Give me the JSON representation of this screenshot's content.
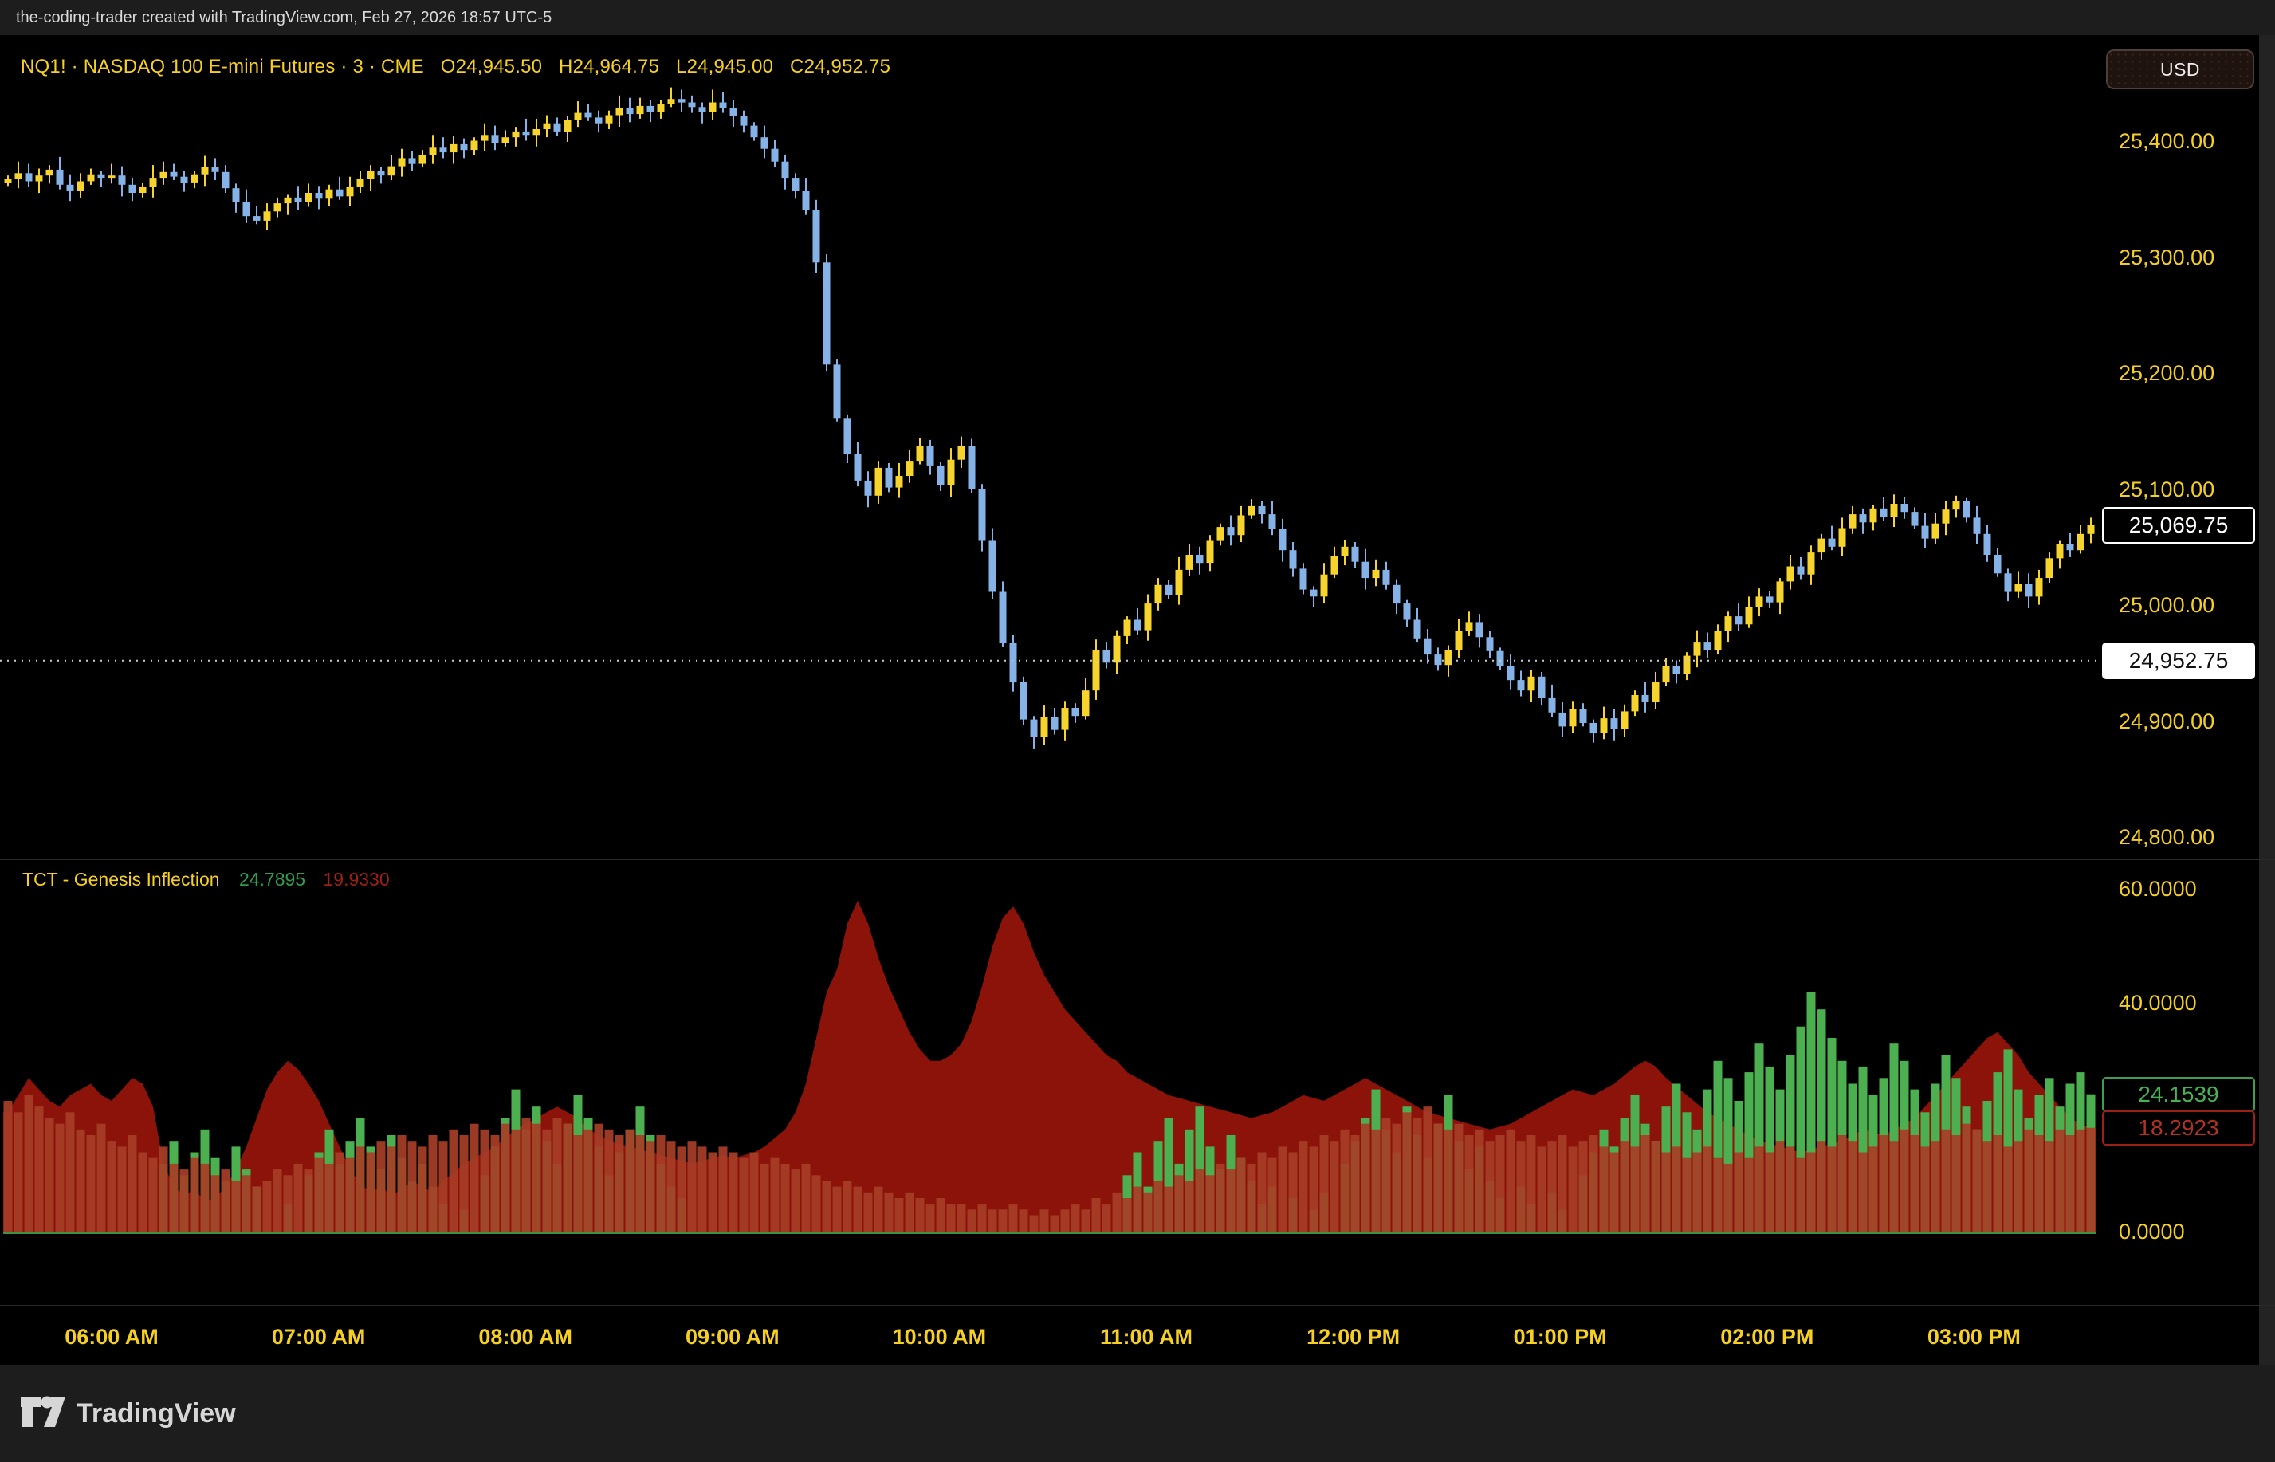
{
  "top_bar": {
    "attribution": "the-coding-trader created with TradingView.com, Feb 27, 2026 18:57 UTC-5"
  },
  "symbol_header": {
    "title": "NQ1! · NASDAQ 100 E-mini Futures · 3 · CME",
    "open": "O24,945.50",
    "high": "H24,964.75",
    "low": "L24,945.00",
    "close": "C24,952.75"
  },
  "currency_button": {
    "label": "USD"
  },
  "price_axis": {
    "ticks": [
      "25,400.00",
      "25,300.00",
      "25,200.00",
      "25,100.00",
      "25,000.00",
      "24,900.00",
      "24,800.00"
    ],
    "tick_values": [
      25400,
      25300,
      25200,
      25100,
      25000,
      24900,
      24800
    ],
    "last_price_label": "25,069.75",
    "last_price_value": 25069.75,
    "price_line_label": "24,952.75",
    "price_line_value": 24952.75
  },
  "indicator_header": {
    "title": "TCT - Genesis Inflection",
    "green_value": "24.7895",
    "red_value": "19.9330"
  },
  "indicator_axis": {
    "ticks": [
      "60.0000",
      "40.0000",
      "0.0000"
    ],
    "tick_values": [
      60,
      40,
      0
    ],
    "green_label": "24.1539",
    "green_value": 24.1539,
    "red_label": "18.2923",
    "red_value": 18.2923
  },
  "time_axis": {
    "labels": [
      "06:00 AM",
      "07:00 AM",
      "08:00 AM",
      "09:00 AM",
      "10:00 AM",
      "11:00 AM",
      "12:00 PM",
      "01:00 PM",
      "02:00 PM",
      "03:00 PM"
    ]
  },
  "footer": {
    "brand": "TradingView"
  },
  "colors": {
    "background": "#000000",
    "chrome": "#1d1d1d",
    "axis_text": "#f5cf22",
    "up_candle": "#f6d32d",
    "down_candle": "#85b3e8",
    "indicator_area": "#8c1309",
    "indicator_red_bars": "#a73e27",
    "indicator_green_bars": "#4caf50",
    "zero_line": "#3f9142",
    "price_line": "#cccccc"
  },
  "chart_data": [
    {
      "type": "candlestick",
      "symbol": "NQ1!",
      "interval_minutes": 3,
      "x_start": "05:30 AM",
      "x_end": "03:33 PM",
      "ylim": [
        24800,
        25450
      ],
      "first_open": 25365,
      "closes": [
        25368,
        25373,
        25366,
        25371,
        25376,
        25363,
        25358,
        25366,
        25372,
        25369,
        25371,
        25363,
        25356,
        25361,
        25369,
        25374,
        25370,
        25365,
        25372,
        25378,
        25374,
        25360,
        25348,
        25336,
        25332,
        25340,
        25347,
        25352,
        25348,
        25356,
        25351,
        25359,
        25353,
        25361,
        25368,
        25375,
        25371,
        25379,
        25386,
        25381,
        25389,
        25395,
        25391,
        25398,
        25393,
        25401,
        25406,
        25399,
        25404,
        25409,
        25406,
        25411,
        25416,
        25409,
        25419,
        25425,
        25421,
        25416,
        25423,
        25429,
        25424,
        25431,
        25426,
        25433,
        25437,
        25434,
        25430,
        25426,
        25434,
        25429,
        25422,
        25414,
        25404,
        25394,
        25383,
        25369,
        25358,
        25341,
        25296,
        25208,
        25162,
        25131,
        25108,
        25095,
        25119,
        25102,
        25112,
        25125,
        25138,
        25121,
        25104,
        25126,
        25138,
        25101,
        25056,
        25012,
        24968,
        24934,
        24902,
        24887,
        24904,
        24893,
        24912,
        24905,
        24927,
        24962,
        24951,
        24974,
        24988,
        24979,
        25002,
        25018,
        25009,
        25031,
        25044,
        25037,
        25056,
        25068,
        25061,
        25078,
        25086,
        25079,
        25066,
        25048,
        25032,
        25014,
        25008,
        25027,
        25043,
        25051,
        25038,
        25024,
        25031,
        25018,
        25002,
        24988,
        24972,
        24958,
        24949,
        24962,
        24978,
        24986,
        24973,
        24961,
        24948,
        24936,
        24927,
        24939,
        24921,
        24908,
        24896,
        24911,
        24899,
        24890,
        24903,
        24894,
        24909,
        24923,
        24917,
        24934,
        24948,
        24941,
        24957,
        24969,
        24962,
        24978,
        24991,
        24984,
        24999,
        25008,
        25003,
        25021,
        25034,
        25027,
        25046,
        25058,
        25051,
        25067,
        25079,
        25072,
        25084,
        25077,
        25088,
        25081,
        25069,
        25058,
        25071,
        25083,
        25090,
        25076,
        25062,
        25044,
        25028,
        25012,
        25019,
        25008,
        25024,
        25041,
        25053,
        25048,
        25062,
        25070
      ]
    },
    {
      "type": "bar",
      "title": "TCT - Genesis Inflection",
      "ylim": [
        0,
        62
      ],
      "legend": [
        "green histogram (last 24.1539)",
        "red histogram (last 18.2923)",
        "red area (sell inflection)"
      ],
      "series": [
        {
          "name": "green_bars",
          "values": [
            0,
            0,
            0,
            0,
            0,
            0,
            0,
            0,
            0,
            0,
            0,
            0,
            0,
            0,
            0,
            12,
            16,
            10,
            14,
            18,
            13,
            9,
            15,
            11,
            8,
            0,
            0,
            5,
            0,
            10,
            14,
            18,
            12,
            16,
            20,
            15,
            11,
            17,
            13,
            9,
            12,
            8,
            5,
            0,
            4,
            0,
            10,
            15,
            20,
            25,
            18,
            22,
            16,
            12,
            19,
            24,
            20,
            15,
            10,
            14,
            18,
            22,
            17,
            12,
            8,
            6,
            0,
            0,
            0,
            0,
            0,
            0,
            0,
            0,
            0,
            0,
            0,
            0,
            0,
            0,
            0,
            0,
            0,
            0,
            0,
            0,
            0,
            0,
            0,
            0,
            0,
            0,
            0,
            0,
            0,
            0,
            0,
            0,
            0,
            0,
            0,
            0,
            0,
            0,
            0,
            0,
            0,
            0,
            10,
            14,
            8,
            16,
            20,
            12,
            18,
            22,
            15,
            11,
            17,
            13,
            9,
            5,
            8,
            0,
            6,
            0,
            4,
            7,
            0,
            12,
            16,
            20,
            25,
            18,
            14,
            22,
            17,
            13,
            19,
            24,
            16,
            11,
            15,
            9,
            6,
            0,
            8,
            5,
            0,
            7,
            4,
            0,
            10,
            14,
            18,
            15,
            20,
            24,
            19,
            16,
            22,
            26,
            21,
            18,
            25,
            30,
            27,
            23,
            28,
            33,
            29,
            25,
            31,
            36,
            42,
            39,
            34,
            30,
            26,
            29,
            24,
            27,
            33,
            30,
            25,
            21,
            26,
            31,
            27,
            22,
            18,
            23,
            28,
            32,
            25,
            20,
            24,
            27,
            22,
            26,
            28,
            24.15
          ]
        },
        {
          "name": "red_bars",
          "values": [
            23,
            21,
            24,
            22,
            20,
            19,
            21,
            18,
            17,
            19,
            16,
            15,
            17,
            14,
            13,
            15,
            12,
            11,
            13,
            12,
            10,
            11,
            9,
            10,
            8,
            9,
            11,
            10,
            12,
            11,
            13,
            12,
            14,
            13,
            15,
            14,
            16,
            15,
            17,
            16,
            15,
            17,
            16,
            18,
            17,
            19,
            18,
            17,
            19,
            18,
            20,
            19,
            18,
            20,
            19,
            17,
            18,
            19,
            18,
            17,
            18,
            17,
            16,
            17,
            16,
            15,
            16,
            15,
            14,
            15,
            14,
            13,
            14,
            12,
            13,
            12,
            11,
            12,
            10,
            9,
            8,
            9,
            8,
            7,
            8,
            7,
            6,
            7,
            6,
            5,
            6,
            5,
            5,
            4,
            5,
            4,
            4,
            5,
            4,
            3,
            4,
            3,
            4,
            5,
            4,
            6,
            5,
            7,
            6,
            8,
            7,
            9,
            8,
            10,
            9,
            11,
            10,
            12,
            11,
            13,
            12,
            14,
            13,
            15,
            14,
            16,
            15,
            17,
            16,
            18,
            17,
            19,
            18,
            20,
            19,
            21,
            20,
            22,
            19,
            18,
            19,
            17,
            18,
            16,
            17,
            18,
            16,
            17,
            15,
            16,
            17,
            15,
            16,
            17,
            15,
            14,
            16,
            15,
            17,
            16,
            14,
            15,
            13,
            14,
            15,
            13,
            12,
            14,
            13,
            15,
            14,
            16,
            15,
            13,
            14,
            16,
            15,
            17,
            16,
            14,
            15,
            17,
            16,
            18,
            17,
            15,
            16,
            18,
            17,
            19,
            18,
            16,
            17,
            15,
            16,
            18,
            17,
            16,
            18,
            17,
            18,
            18.29
          ]
        },
        {
          "name": "red_area",
          "values": [
            21,
            24,
            27,
            25,
            23,
            22,
            24,
            25,
            26,
            24,
            23,
            25,
            27,
            26,
            22,
            12,
            8,
            6.5,
            7.5,
            5.5,
            6,
            8,
            11,
            15,
            20,
            25,
            28,
            30,
            28.5,
            26,
            23,
            19,
            15,
            11,
            8.5,
            7,
            8,
            6.5,
            7.5,
            9,
            8,
            7,
            9,
            10.5,
            12,
            13,
            14,
            15,
            16.5,
            18,
            19,
            20,
            21,
            22,
            21,
            20,
            18,
            17,
            16,
            15.5,
            15,
            14.5,
            14,
            13.5,
            13,
            12.5,
            12,
            12.5,
            13,
            13.5,
            13,
            13.5,
            14,
            15,
            16.5,
            18,
            21,
            26,
            34,
            42,
            46,
            54,
            58,
            54,
            48,
            43,
            39,
            35,
            32,
            30,
            30,
            31,
            33,
            37,
            43,
            50,
            55,
            57,
            54,
            49,
            45,
            42,
            39,
            37,
            35,
            33,
            31,
            30,
            28,
            27,
            26,
            25,
            24,
            23.5,
            23,
            22.5,
            22,
            21.5,
            21,
            20.5,
            20,
            20.5,
            21,
            22,
            23,
            24,
            23.5,
            23,
            24,
            25,
            26,
            27,
            26,
            25,
            24,
            23,
            22,
            21,
            20.5,
            20,
            19.5,
            19,
            18.5,
            18,
            18.5,
            19,
            20,
            21,
            22,
            23,
            24,
            25,
            24.5,
            24,
            25,
            26,
            27.5,
            29,
            30,
            29,
            27,
            25.5,
            24,
            22.5,
            21,
            20,
            19,
            18,
            17,
            16,
            15.5,
            15,
            14.5,
            14,
            14.5,
            15,
            15.5,
            16,
            17,
            18,
            17.5,
            17,
            18,
            19,
            20,
            22,
            24,
            26,
            28,
            30,
            32,
            34,
            35,
            33,
            31,
            28,
            26,
            24,
            22,
            20,
            19,
            18.29
          ]
        }
      ]
    }
  ]
}
